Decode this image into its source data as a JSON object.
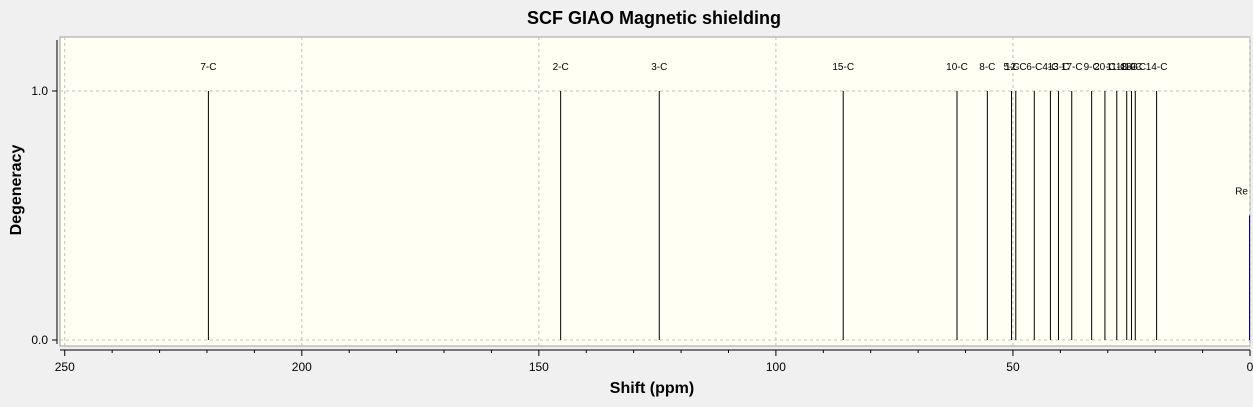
{
  "chart_data": {
    "type": "bar",
    "title": "SCF GIAO Magnetic shielding",
    "xlabel": "Shift (ppm)",
    "ylabel": "Degeneracy",
    "xlim": [
      251,
      0
    ],
    "ylim": [
      0,
      1.2
    ],
    "x_ticks": [
      250,
      200,
      150,
      100,
      50,
      0
    ],
    "y_ticks": [
      0.0,
      1.0
    ],
    "y_tick_labels": [
      "0.0",
      "1.0"
    ],
    "grid": true,
    "series": [
      {
        "values": [
          {
            "label": "7-C",
            "x": 219.7,
            "y": 1
          },
          {
            "label": "2-C",
            "x": 145.4,
            "y": 1
          },
          {
            "label": "3-C",
            "x": 124.6,
            "y": 1
          },
          {
            "label": "15-C",
            "x": 85.8,
            "y": 1
          },
          {
            "label": "10-C",
            "x": 61.8,
            "y": 1
          },
          {
            "label": "8-C",
            "x": 55.4,
            "y": 1
          },
          {
            "label": "5-C",
            "x": 50.3,
            "y": 1
          },
          {
            "label": "12-C",
            "x": 49.4,
            "y": 1
          },
          {
            "label": "6-C",
            "x": 45.5,
            "y": 1
          },
          {
            "label": "4-C",
            "x": 42.1,
            "y": 1
          },
          {
            "label": "13-C",
            "x": 40.4,
            "y": 1
          },
          {
            "label": "17-C",
            "x": 37.6,
            "y": 1
          },
          {
            "label": "9-C",
            "x": 33.4,
            "y": 1
          },
          {
            "label": "20-C",
            "x": 30.6,
            "y": 1
          },
          {
            "label": "11-C",
            "x": 28.1,
            "y": 1
          },
          {
            "label": "18-C",
            "x": 26.0,
            "y": 1
          },
          {
            "label": "16-C",
            "x": 25.0,
            "y": 1
          },
          {
            "label": "19-C",
            "x": 24.2,
            "y": 1
          },
          {
            "label": "14-C",
            "x": 19.7,
            "y": 1
          }
        ]
      },
      {
        "values": [
          {
            "label": "Re",
            "x": 0.1,
            "y": 0.5
          }
        ]
      }
    ],
    "colors": {
      "background": "#f0f0f0",
      "plot_background": "#fffff4",
      "grid": "#c0c0c0",
      "peak": "#000000",
      "reference_peak": "#000080",
      "text": "#000000"
    }
  }
}
